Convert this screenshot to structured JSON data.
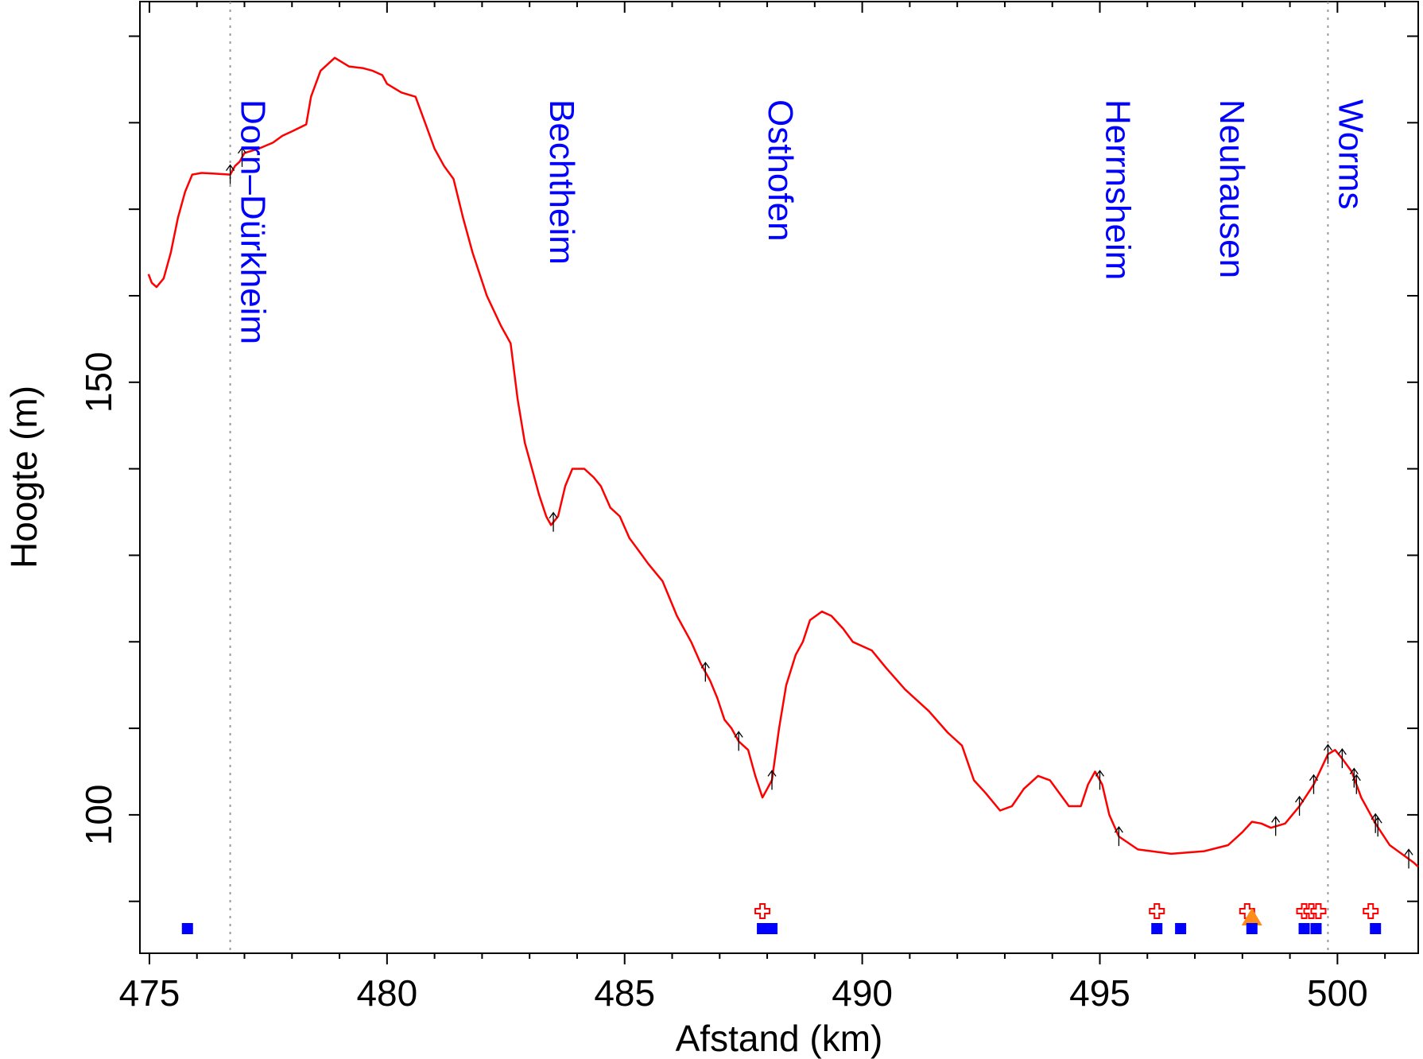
{
  "chart_data": {
    "type": "line",
    "xlabel": "Afstand (km)",
    "ylabel": "Hoogte (m)",
    "xlim": [
      474.8,
      501.7
    ],
    "ylim": [
      84,
      194
    ],
    "x_ticks": [
      475,
      480,
      485,
      490,
      495,
      500
    ],
    "x_tick_labels": [
      "475",
      "480",
      "485",
      "490",
      "495",
      "500"
    ],
    "y_ticks": [
      100,
      150
    ],
    "y_tick_labels": [
      "100",
      "150"
    ],
    "y_minor_ticks": [
      90,
      110,
      120,
      130,
      140,
      160,
      170,
      180,
      190
    ],
    "grid": false,
    "line_color": "#ff0000",
    "station_label_color": "#0000ff",
    "stations": [
      {
        "x": 476.7,
        "name": "Dorn–Dürkheim",
        "dotted_line": true
      },
      {
        "x": 483.2,
        "name": "Bechtheim",
        "dotted_line": false
      },
      {
        "x": 487.8,
        "name": "Osthofen",
        "dotted_line": false
      },
      {
        "x": 494.9,
        "name": "Herrnsheim",
        "dotted_line": false
      },
      {
        "x": 497.3,
        "name": "Neuhausen",
        "dotted_line": false
      },
      {
        "x": 499.8,
        "name": "Worms",
        "dotted_line": true
      }
    ],
    "series": [
      {
        "values": [
          [
            474.98,
            162.5
          ],
          [
            475.05,
            161.5
          ],
          [
            475.15,
            161.0
          ],
          [
            475.3,
            162.0
          ],
          [
            475.45,
            165.0
          ],
          [
            475.6,
            169.0
          ],
          [
            475.75,
            172.0
          ],
          [
            475.9,
            174.0
          ],
          [
            476.1,
            174.2
          ],
          [
            476.4,
            174.1
          ],
          [
            476.7,
            174.0
          ],
          [
            476.8,
            175.0
          ],
          [
            476.9,
            175.5
          ],
          [
            477.0,
            176.5
          ],
          [
            477.3,
            177.0
          ],
          [
            477.6,
            177.7
          ],
          [
            477.8,
            178.5
          ],
          [
            478.0,
            179.0
          ],
          [
            478.3,
            179.8
          ],
          [
            478.4,
            183.0
          ],
          [
            478.6,
            186.0
          ],
          [
            478.9,
            187.5
          ],
          [
            479.2,
            186.5
          ],
          [
            479.5,
            186.3
          ],
          [
            479.7,
            186.0
          ],
          [
            479.9,
            185.5
          ],
          [
            480.0,
            184.5
          ],
          [
            480.3,
            183.5
          ],
          [
            480.6,
            183.0
          ],
          [
            480.8,
            180.0
          ],
          [
            481.0,
            177.0
          ],
          [
            481.2,
            175.0
          ],
          [
            481.4,
            173.5
          ],
          [
            481.6,
            169.0
          ],
          [
            481.8,
            165.0
          ],
          [
            482.1,
            160.0
          ],
          [
            482.4,
            156.5
          ],
          [
            482.6,
            154.5
          ],
          [
            482.75,
            148.0
          ],
          [
            482.9,
            143.0
          ],
          [
            483.05,
            140.0
          ],
          [
            483.2,
            137.0
          ],
          [
            483.35,
            134.5
          ],
          [
            483.45,
            133.5
          ],
          [
            483.6,
            134.5
          ],
          [
            483.75,
            138.0
          ],
          [
            483.9,
            140.0
          ],
          [
            484.15,
            140.0
          ],
          [
            484.35,
            139.0
          ],
          [
            484.5,
            138.0
          ],
          [
            484.7,
            135.5
          ],
          [
            484.9,
            134.5
          ],
          [
            485.1,
            132.0
          ],
          [
            485.3,
            130.5
          ],
          [
            485.5,
            129.0
          ],
          [
            485.8,
            127.0
          ],
          [
            486.1,
            123.0
          ],
          [
            486.4,
            120.0
          ],
          [
            486.6,
            117.5
          ],
          [
            486.8,
            115.5
          ],
          [
            486.95,
            113.5
          ],
          [
            487.1,
            111.0
          ],
          [
            487.25,
            110.0
          ],
          [
            487.4,
            108.5
          ],
          [
            487.6,
            107.5
          ],
          [
            487.75,
            104.5
          ],
          [
            487.9,
            102.0
          ],
          [
            488.0,
            103.0
          ],
          [
            488.1,
            104.0
          ],
          [
            488.25,
            110.0
          ],
          [
            488.4,
            115.0
          ],
          [
            488.6,
            118.5
          ],
          [
            488.75,
            120.0
          ],
          [
            488.9,
            122.5
          ],
          [
            489.15,
            123.5
          ],
          [
            489.35,
            123.0
          ],
          [
            489.6,
            121.5
          ],
          [
            489.8,
            120.0
          ],
          [
            490.2,
            119.0
          ],
          [
            490.5,
            117.0
          ],
          [
            490.9,
            114.5
          ],
          [
            491.4,
            112.0
          ],
          [
            491.8,
            109.5
          ],
          [
            492.1,
            108.0
          ],
          [
            492.35,
            104.0
          ],
          [
            492.6,
            102.5
          ],
          [
            492.9,
            100.5
          ],
          [
            493.15,
            101.0
          ],
          [
            493.4,
            103.0
          ],
          [
            493.7,
            104.5
          ],
          [
            493.95,
            104.0
          ],
          [
            494.15,
            102.5
          ],
          [
            494.35,
            101.0
          ],
          [
            494.6,
            101.0
          ],
          [
            494.75,
            103.5
          ],
          [
            494.9,
            105.0
          ],
          [
            495.05,
            103.5
          ],
          [
            495.2,
            100.0
          ],
          [
            495.4,
            97.5
          ],
          [
            495.8,
            96.0
          ],
          [
            496.5,
            95.5
          ],
          [
            497.2,
            95.8
          ],
          [
            497.7,
            96.5
          ],
          [
            498.0,
            98.0
          ],
          [
            498.2,
            99.2
          ],
          [
            498.4,
            99.0
          ],
          [
            498.6,
            98.5
          ],
          [
            498.9,
            99.0
          ],
          [
            499.2,
            101.0
          ],
          [
            499.5,
            103.5
          ],
          [
            499.8,
            107.0
          ],
          [
            499.95,
            107.5
          ],
          [
            500.1,
            106.5
          ],
          [
            500.3,
            105.0
          ],
          [
            500.5,
            102.0
          ],
          [
            500.8,
            99.0
          ],
          [
            501.1,
            96.5
          ],
          [
            501.35,
            95.5
          ],
          [
            501.6,
            94.5
          ],
          [
            501.7,
            94.0
          ]
        ]
      }
    ],
    "arrow_markers_x": [
      476.7,
      476.95,
      483.5,
      486.7,
      487.4,
      488.1,
      495.0,
      495.4,
      498.7,
      499.2,
      499.5,
      499.8,
      500.1,
      500.35,
      500.4,
      500.8,
      500.85,
      501.5
    ],
    "red_cross_markers_x": [
      487.9,
      496.2,
      498.1,
      499.3,
      499.45,
      499.6,
      500.7
    ],
    "orange_triangle_markers_x": [
      498.2
    ],
    "blue_square_markers_x": [
      475.8,
      487.9,
      488.1,
      496.2,
      496.7,
      498.2,
      499.3,
      499.55,
      500.8
    ]
  }
}
